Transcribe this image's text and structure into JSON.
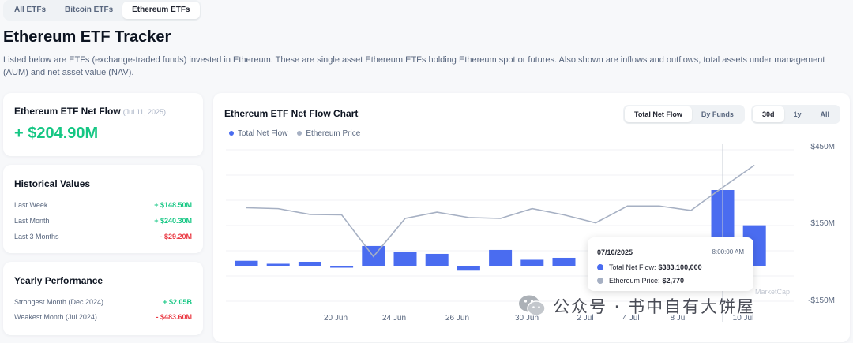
{
  "tabs": [
    {
      "label": "All ETFs",
      "active": false
    },
    {
      "label": "Bitcoin ETFs",
      "active": false
    },
    {
      "label": "Ethereum ETFs",
      "active": true
    }
  ],
  "page": {
    "title": "Ethereum ETF Tracker",
    "description": "Listed below are ETFs (exchange-traded funds) invested in Ethereum. These are single asset Ethereum ETFs holding Ethereum spot or futures. Also shown are inflows and outflows, total assets under management (AUM) and net asset value (NAV)."
  },
  "net_flow_card": {
    "title": "Ethereum ETF Net Flow",
    "date": "(Jul 11, 2025)",
    "value": "+ $204.90M"
  },
  "historical": {
    "title": "Historical Values",
    "rows": [
      {
        "label": "Last Week",
        "value": "+ $148.50M",
        "sign": "pos"
      },
      {
        "label": "Last Month",
        "value": "+ $240.30M",
        "sign": "pos"
      },
      {
        "label": "Last 3 Months",
        "value": "- $29.20M",
        "sign": "neg"
      }
    ]
  },
  "yearly": {
    "title": "Yearly Performance",
    "rows": [
      {
        "label": "Strongest Month (Dec 2024)",
        "value": "+ $2.05B",
        "sign": "pos"
      },
      {
        "label": "Weakest Month (Jul 2024)",
        "value": "- $483.60M",
        "sign": "neg"
      }
    ]
  },
  "chart_panel": {
    "title": "Ethereum ETF Net Flow Chart",
    "view_buttons": [
      {
        "label": "Total Net Flow",
        "active": true
      },
      {
        "label": "By Funds",
        "active": false
      }
    ],
    "range_buttons": [
      {
        "label": "30d",
        "active": true
      },
      {
        "label": "1y",
        "active": false
      },
      {
        "label": "All",
        "active": false
      }
    ],
    "legend": [
      {
        "label": "Total Net Flow",
        "color": "#4a6cf0"
      },
      {
        "label": "Ethereum Price",
        "color": "#a6b0c3"
      }
    ],
    "watermark": "MarketCap"
  },
  "tooltip": {
    "date": "07/10/2025",
    "time": "8:00:00 AM",
    "flow_label": "Total Net Flow:",
    "flow_value": "$383,100,000",
    "price_label": "Ethereum Price:",
    "price_value": "$2,770"
  },
  "overlay": {
    "text": "公众号 · 书中自有大饼屋"
  },
  "chart_data": {
    "type": "bar",
    "x_tick_labels": [
      "20 Jun",
      "24 Jun",
      "26 Jun",
      "30 Jun",
      "2 Jul",
      "4 Jul",
      "8 Jul",
      "10 Jul"
    ],
    "y_tick_labels": [
      "$450M",
      "$150M",
      "-$150M"
    ],
    "ylim": [
      -150,
      450
    ],
    "series": [
      {
        "name": "Total Net Flow",
        "type": "bar",
        "color": "#4a6cf0",
        "values": [
          25,
          10,
          20,
          -10,
          100,
          70,
          60,
          -25,
          80,
          30,
          40,
          0,
          65,
          0,
          0,
          383.1,
          205
        ]
      },
      {
        "name": "Ethereum Price",
        "type": "line",
        "color": "#a6b0c3",
        "values": [
          2540,
          2530,
          2465,
          2460,
          1990,
          2420,
          2490,
          2430,
          2420,
          2530,
          2460,
          2370,
          2560,
          2560,
          2510,
          2770,
          3020
        ]
      }
    ]
  }
}
